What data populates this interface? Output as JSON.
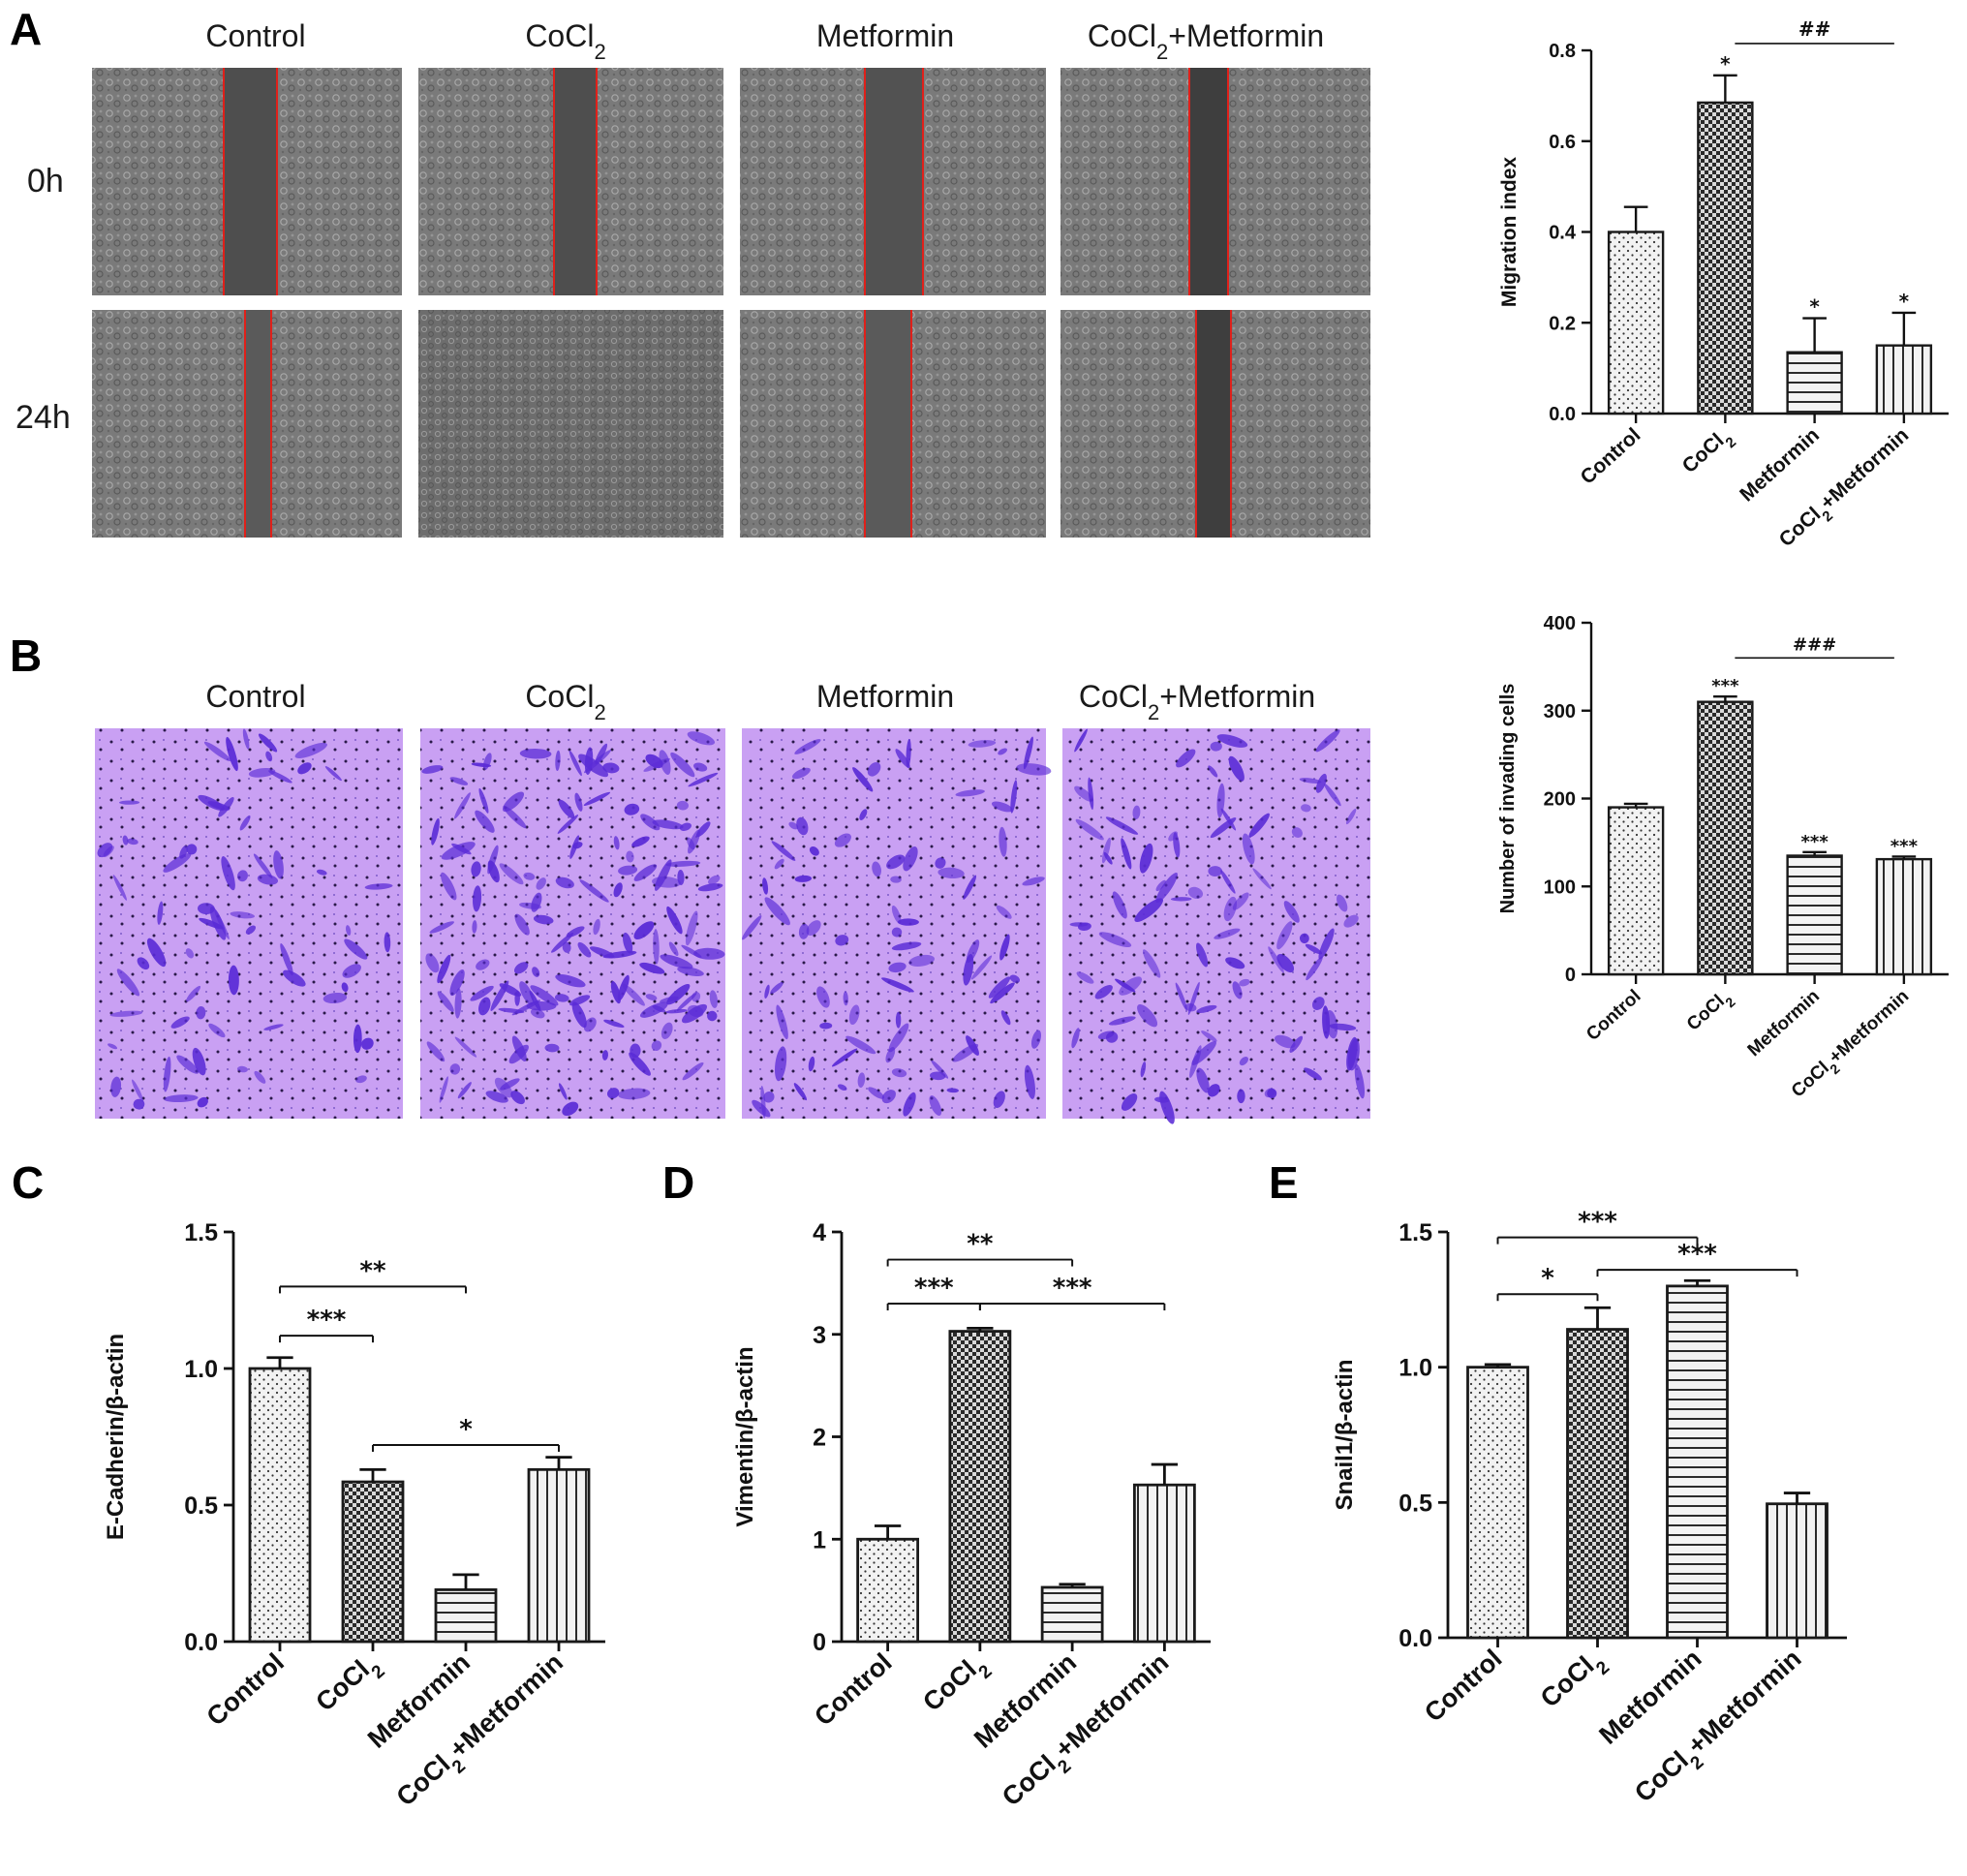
{
  "panel_labels": [
    "A",
    "B",
    "C",
    "D",
    "E"
  ],
  "panelA": {
    "column_titles": [
      {
        "text": "Control",
        "sub": ""
      },
      {
        "text": "CoCl",
        "sub": "2"
      },
      {
        "text": "Metformin",
        "sub": ""
      },
      {
        "text": "CoCl",
        "sub": "2",
        "suffix": "+Metformin"
      }
    ],
    "row_labels": [
      "0h",
      "24h"
    ]
  },
  "panelB": {
    "column_titles": [
      {
        "text": "Control",
        "sub": ""
      },
      {
        "text": "CoCl",
        "sub": "2"
      },
      {
        "text": "Metformin",
        "sub": ""
      },
      {
        "text": "CoCl",
        "sub": "2",
        "suffix": "+Metformin"
      }
    ]
  },
  "category_labels": [
    {
      "text": "Control",
      "sub": "",
      "suffix": ""
    },
    {
      "text": "CoCl",
      "sub": "2",
      "suffix": ""
    },
    {
      "text": "Metformin",
      "sub": "",
      "suffix": ""
    },
    {
      "text": "CoCl",
      "sub": "2",
      "suffix": "+Metformin"
    }
  ],
  "colors": {
    "bar_fill": "#f2f2f2",
    "bar_stroke": "#1a1a1a",
    "scratch_line": "#e0201a",
    "stain": "#5a2bd6",
    "membrane": "#c79cf2"
  },
  "chart_data": [
    {
      "id": "A-migration",
      "type": "bar",
      "categories": [
        "Control",
        "CoCl2",
        "Metformin",
        "CoCl2+Metformin"
      ],
      "values": [
        0.4,
        0.685,
        0.135,
        0.15
      ],
      "errors": [
        0.055,
        0.06,
        0.075,
        0.072
      ],
      "patterns": [
        "dots",
        "checker",
        "hlines",
        "vlines"
      ],
      "ylabel": "Migration index",
      "ylim": [
        0,
        0.8
      ],
      "yticks": [
        "0.0",
        "0.2",
        "0.4",
        "0.6",
        "0.8"
      ],
      "bar_marks": [
        "",
        "*",
        "*",
        "*"
      ],
      "brackets": [
        {
          "from": 1,
          "to": 3,
          "label": "##",
          "y": 0.815,
          "ticks": false
        }
      ]
    },
    {
      "id": "B-invasion",
      "type": "bar",
      "categories": [
        "Control",
        "CoCl2",
        "Metformin",
        "CoCl2+Metformin"
      ],
      "values": [
        190,
        310,
        135,
        131
      ],
      "errors": [
        4,
        6,
        4,
        3
      ],
      "patterns": [
        "dots",
        "checker",
        "hlines",
        "vlines"
      ],
      "ylabel": "Number of invading cells",
      "ylim": [
        0,
        400
      ],
      "yticks": [
        "0",
        "100",
        "200",
        "300",
        "400"
      ],
      "bar_marks": [
        "",
        "***",
        "***",
        "***"
      ],
      "brackets": [
        {
          "from": 1,
          "to": 3,
          "label": "###",
          "y": 360,
          "ticks": false
        }
      ]
    },
    {
      "id": "C-ecadherin",
      "type": "bar",
      "categories": [
        "Control",
        "CoCl2",
        "Metformin",
        "CoCl2+Metformin"
      ],
      "values": [
        1.0,
        0.585,
        0.19,
        0.63
      ],
      "errors": [
        0.04,
        0.045,
        0.055,
        0.045
      ],
      "patterns": [
        "dots",
        "checker",
        "hlines",
        "vlines"
      ],
      "ylabel": "E-Cadherin/β-actin",
      "ylim": [
        0,
        1.5
      ],
      "yticks": [
        "0.0",
        "0.5",
        "1.0",
        "1.5"
      ],
      "bar_marks": [
        "",
        "",
        "",
        ""
      ],
      "brackets": [
        {
          "from": 0,
          "to": 1,
          "label": "***",
          "y": 1.12,
          "ticks": true
        },
        {
          "from": 0,
          "to": 2,
          "label": "**",
          "y": 1.3,
          "ticks": true
        },
        {
          "from": 1,
          "to": 3,
          "label": "*",
          "y": 0.72,
          "ticks": true
        }
      ]
    },
    {
      "id": "D-vimentin",
      "type": "bar",
      "categories": [
        "Control",
        "CoCl2",
        "Metformin",
        "CoCl2+Metformin"
      ],
      "values": [
        1.0,
        3.03,
        0.53,
        1.53
      ],
      "errors": [
        0.13,
        0.03,
        0.03,
        0.2
      ],
      "patterns": [
        "dots",
        "checker",
        "hlines",
        "vlines"
      ],
      "ylabel": "Vimentin/β-actin",
      "ylim": [
        0,
        4
      ],
      "yticks": [
        "0",
        "1",
        "2",
        "3",
        "4"
      ],
      "bar_marks": [
        "",
        "",
        "",
        ""
      ],
      "brackets": [
        {
          "from": 0,
          "to": 1,
          "label": "***",
          "y": 3.3,
          "ticks": true
        },
        {
          "from": 0,
          "to": 2,
          "label": "**",
          "y": 3.73,
          "ticks": true
        },
        {
          "from": 1,
          "to": 3,
          "label": "***",
          "y": 3.3,
          "ticks": true
        }
      ]
    },
    {
      "id": "E-snail1",
      "type": "bar",
      "categories": [
        "Control",
        "CoCl2",
        "Metformin",
        "CoCl2+Metformin"
      ],
      "values": [
        1.0,
        1.14,
        1.3,
        0.495
      ],
      "errors": [
        0.01,
        0.08,
        0.02,
        0.04
      ],
      "patterns": [
        "dots",
        "checker",
        "hlines",
        "vlines"
      ],
      "ylabel": "Snail1/β-actin",
      "ylim": [
        0,
        1.5
      ],
      "yticks": [
        "0.0",
        "0.5",
        "1.0",
        "1.5"
      ],
      "bar_marks": [
        "",
        "",
        "",
        ""
      ],
      "brackets": [
        {
          "from": 0,
          "to": 1,
          "label": "*",
          "y": 1.27,
          "ticks": true
        },
        {
          "from": 0,
          "to": 2,
          "label": "***",
          "y": 1.48,
          "ticks": true
        },
        {
          "from": 1,
          "to": 3,
          "label": "***",
          "y": 1.36,
          "ticks": true
        }
      ]
    }
  ]
}
